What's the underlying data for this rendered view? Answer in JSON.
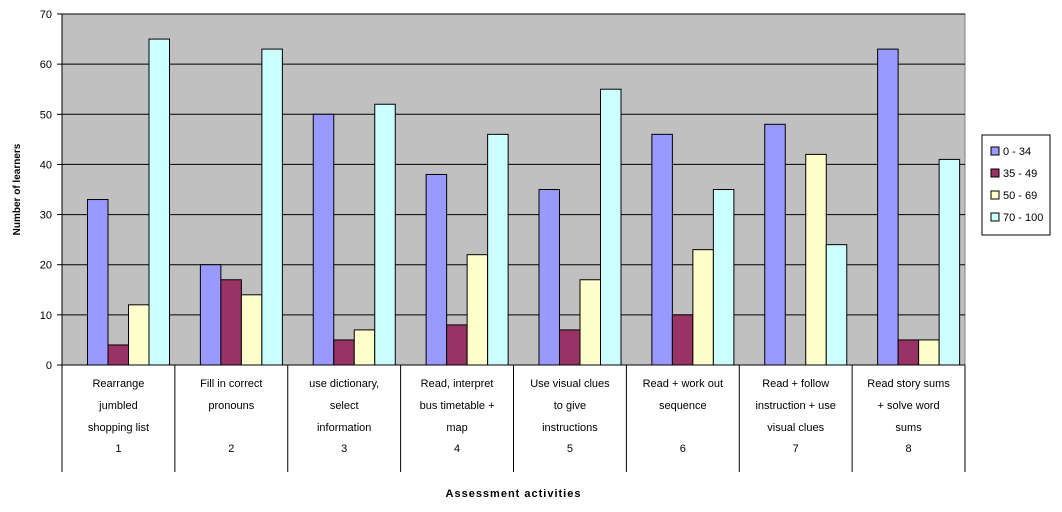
{
  "chart_data": {
    "type": "bar",
    "title": "",
    "xlabel": "Assessment activities",
    "ylabel": "Number of learners",
    "ylim": [
      0,
      70
    ],
    "y_ticks": [
      0,
      10,
      20,
      30,
      40,
      50,
      60,
      70
    ],
    "grid": true,
    "legend_position": "right",
    "categories": [
      {
        "number": "1",
        "lines": [
          "Rearrange",
          "jumbled",
          "shopping list"
        ]
      },
      {
        "number": "2",
        "lines": [
          "Fill in correct",
          "pronouns"
        ]
      },
      {
        "number": "3",
        "lines": [
          "use dictionary,",
          "select",
          "information"
        ]
      },
      {
        "number": "4",
        "lines": [
          "Read, interpret",
          "bus timetable +",
          "map"
        ]
      },
      {
        "number": "5",
        "lines": [
          "Use visual clues",
          "to give",
          "instructions"
        ]
      },
      {
        "number": "6",
        "lines": [
          "Read + work out",
          "sequence"
        ]
      },
      {
        "number": "7",
        "lines": [
          "Read + follow",
          "instruction + use",
          "visual clues"
        ]
      },
      {
        "number": "8",
        "lines": [
          "Read story sums",
          "+ solve word",
          "sums"
        ]
      }
    ],
    "series": [
      {
        "name": "0 - 34",
        "color": "#9999ff",
        "values": [
          33,
          20,
          50,
          38,
          35,
          46,
          48,
          63
        ]
      },
      {
        "name": "35 - 49",
        "color": "#993366",
        "values": [
          4,
          17,
          5,
          8,
          7,
          10,
          0,
          5
        ]
      },
      {
        "name": "50 - 69",
        "color": "#ffffcc",
        "values": [
          12,
          14,
          7,
          22,
          17,
          23,
          42,
          5
        ]
      },
      {
        "name": "70 - 100",
        "color": "#ccffff",
        "values": [
          65,
          63,
          52,
          46,
          55,
          35,
          24,
          41
        ]
      }
    ],
    "plot_background": "#c0c0c0"
  }
}
